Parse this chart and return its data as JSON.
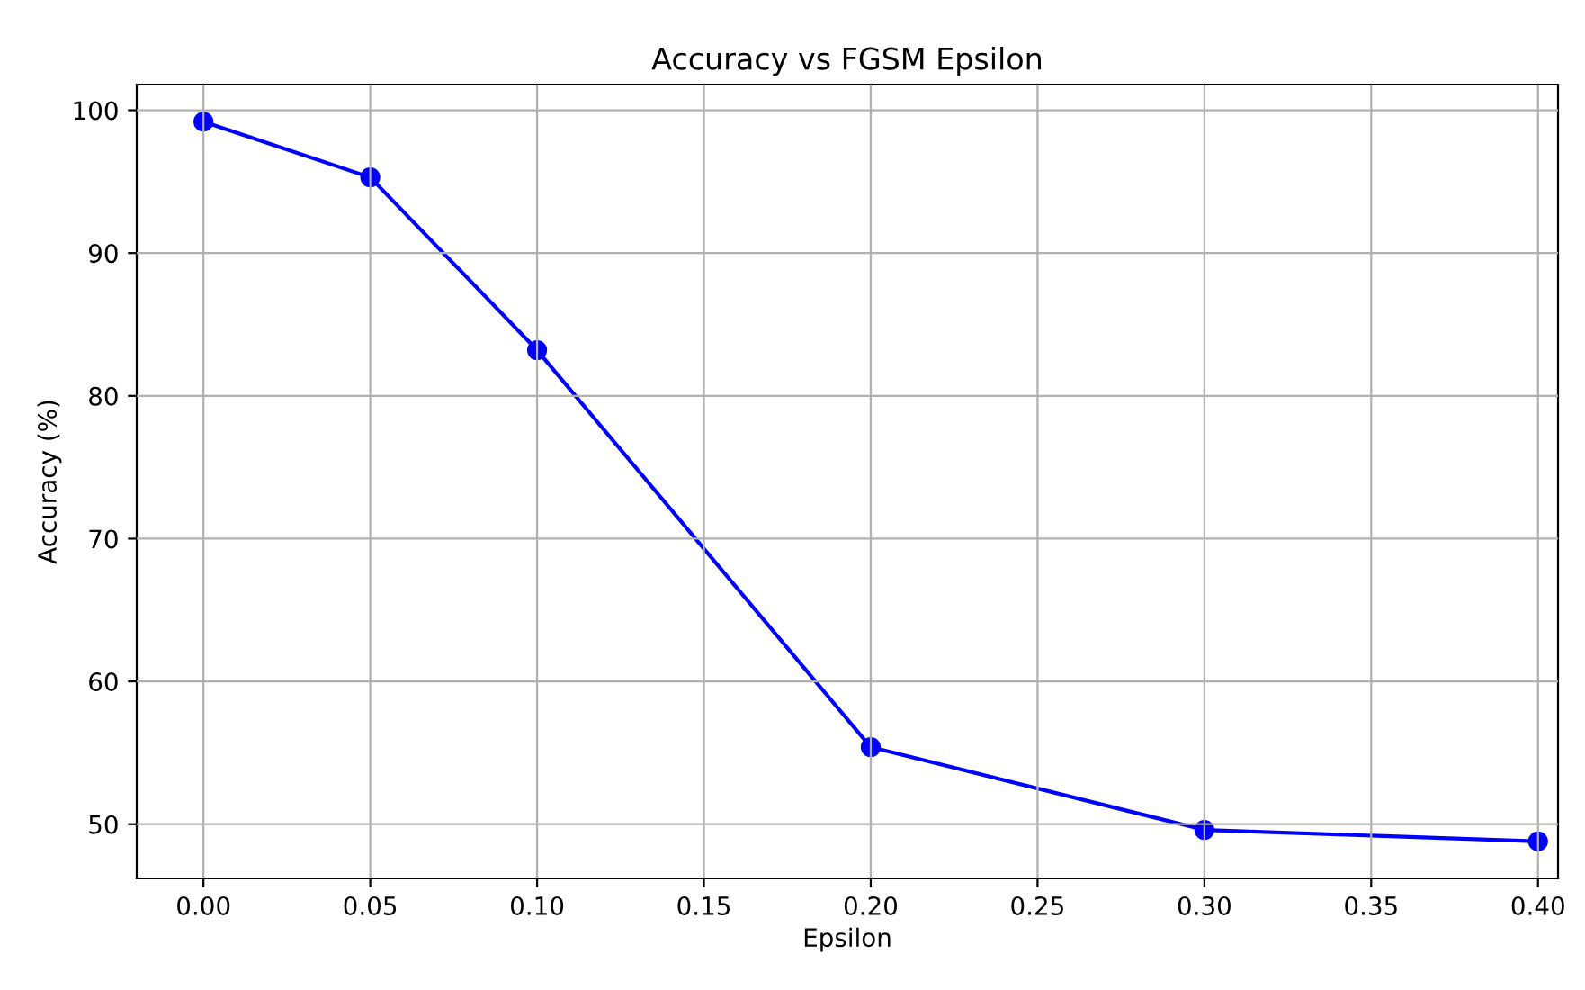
{
  "chart_data": {
    "type": "line",
    "title": "Accuracy vs FGSM Epsilon",
    "xlabel": "Epsilon",
    "ylabel": "Accuracy (%)",
    "x": [
      0.0,
      0.05,
      0.1,
      0.2,
      0.3,
      0.4
    ],
    "series": [
      {
        "color": "#0000ff",
        "values": [
          99.2,
          95.3,
          83.2,
          55.4,
          49.6,
          48.8
        ]
      }
    ],
    "xlim": [
      -0.02,
      0.406
    ],
    "ylim": [
      46.2,
      101.8
    ],
    "xticks": [
      {
        "value": 0.0,
        "label": "0.00"
      },
      {
        "value": 0.05,
        "label": "0.05"
      },
      {
        "value": 0.1,
        "label": "0.10"
      },
      {
        "value": 0.15,
        "label": "0.15"
      },
      {
        "value": 0.2,
        "label": "0.20"
      },
      {
        "value": 0.25,
        "label": "0.25"
      },
      {
        "value": 0.3,
        "label": "0.30"
      },
      {
        "value": 0.35,
        "label": "0.35"
      },
      {
        "value": 0.4,
        "label": "0.40"
      }
    ],
    "yticks": [
      50,
      60,
      70,
      80,
      90,
      100
    ],
    "grid": true,
    "marker": "circle",
    "line_style": "solid"
  }
}
